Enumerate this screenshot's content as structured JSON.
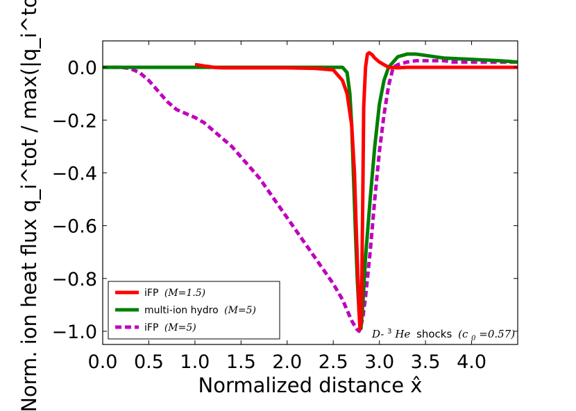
{
  "chart_data": {
    "type": "line",
    "xlabel": "Normalized distance x̂",
    "ylabel": "Norm. ion heat flux q_i^tot / max(|q_i^tot|)",
    "xlim": [
      0.0,
      4.5
    ],
    "ylim": [
      -1.05,
      0.1
    ],
    "x_ticks": [
      0.0,
      0.5,
      1.0,
      1.5,
      2.0,
      2.5,
      3.0,
      3.5,
      4.0
    ],
    "x_tick_labels": [
      "0.0",
      "0.5",
      "1.0",
      "1.5",
      "2.0",
      "2.5",
      "3.0",
      "3.5",
      "4.0"
    ],
    "y_ticks": [
      0.0,
      -0.2,
      -0.4,
      -0.6,
      -0.8,
      -1.0
    ],
    "y_tick_labels": [
      "0.0",
      "−0.2",
      "−0.4",
      "−0.6",
      "−0.8",
      "−1.0"
    ],
    "legend_position": "lower-left",
    "annotation": {
      "prefix": "D-",
      "superscript": "3",
      "species": "He",
      "word": "shocks",
      "param": "(c",
      "param_sub": "0",
      "param_value": "=0.57)"
    },
    "series": [
      {
        "name": "iFP",
        "label_text": "iFP",
        "label_math": "(M=1.5)",
        "color": "#ff0000",
        "style": "solid",
        "x": [
          1.0,
          1.05,
          1.1,
          1.15,
          1.2,
          1.3,
          1.5,
          2.0,
          2.3,
          2.5,
          2.6,
          2.65,
          2.7,
          2.73,
          2.75,
          2.77,
          2.78,
          2.79,
          2.8,
          2.81,
          2.82,
          2.83,
          2.85,
          2.87,
          2.89,
          2.92,
          2.95,
          3.0,
          3.05,
          3.1,
          3.2,
          3.3,
          3.5,
          4.0,
          4.5
        ],
        "y": [
          0.01,
          0.008,
          0.005,
          0.003,
          0.0,
          -0.002,
          -0.002,
          -0.002,
          -0.004,
          -0.01,
          -0.05,
          -0.1,
          -0.22,
          -0.4,
          -0.62,
          -0.82,
          -0.93,
          -0.99,
          -0.97,
          -0.8,
          -0.5,
          -0.15,
          0.0,
          0.05,
          0.055,
          0.048,
          0.035,
          0.02,
          0.01,
          0.0,
          -0.002,
          0.0,
          0.0,
          0.0,
          0.0
        ]
      },
      {
        "name": "multi-ion hydro",
        "label_text": "multi-ion hydro",
        "label_math": "(M=5)",
        "color": "#007f00",
        "style": "solid",
        "x": [
          0.0,
          1.0,
          2.0,
          2.5,
          2.6,
          2.65,
          2.68,
          2.7,
          2.72,
          2.74,
          2.76,
          2.78,
          2.8,
          2.82,
          2.85,
          2.9,
          2.95,
          3.0,
          3.05,
          3.1,
          3.2,
          3.3,
          3.4,
          3.5,
          3.7,
          4.0,
          4.3,
          4.5
        ],
        "y": [
          0.0,
          0.0,
          0.0,
          0.0,
          0.0,
          -0.02,
          -0.1,
          -0.22,
          -0.42,
          -0.62,
          -0.8,
          -0.93,
          -0.99,
          -0.9,
          -0.72,
          -0.5,
          -0.3,
          -0.14,
          -0.05,
          0.0,
          0.04,
          0.05,
          0.05,
          0.045,
          0.035,
          0.03,
          0.025,
          0.02
        ]
      },
      {
        "name": "iFP",
        "label_text": "iFP",
        "label_math": "(M=5)",
        "color": "#bf00bf",
        "style": "dashed",
        "x": [
          0.0,
          0.1,
          0.2,
          0.3,
          0.4,
          0.5,
          0.6,
          0.7,
          0.8,
          0.9,
          1.0,
          1.1,
          1.2,
          1.3,
          1.4,
          1.5,
          1.6,
          1.7,
          1.8,
          1.9,
          2.0,
          2.1,
          2.2,
          2.3,
          2.4,
          2.5,
          2.55,
          2.6,
          2.65,
          2.7,
          2.75,
          2.78,
          2.8,
          2.82,
          2.85,
          2.9,
          2.95,
          3.0,
          3.05,
          3.1,
          3.15,
          3.2,
          3.3,
          3.4,
          3.5,
          3.6,
          3.7,
          3.8,
          4.0,
          4.2,
          4.4,
          4.5
        ],
        "y": [
          0.0,
          0.0,
          0.0,
          -0.005,
          -0.02,
          -0.05,
          -0.09,
          -0.13,
          -0.16,
          -0.175,
          -0.19,
          -0.21,
          -0.24,
          -0.27,
          -0.3,
          -0.34,
          -0.38,
          -0.42,
          -0.47,
          -0.52,
          -0.57,
          -0.62,
          -0.67,
          -0.72,
          -0.77,
          -0.82,
          -0.85,
          -0.88,
          -0.92,
          -0.96,
          -0.99,
          -1.0,
          -0.98,
          -0.95,
          -0.87,
          -0.7,
          -0.5,
          -0.32,
          -0.18,
          -0.07,
          0.0,
          0.01,
          0.02,
          0.025,
          0.025,
          0.025,
          0.025,
          0.02,
          0.02,
          0.02,
          0.02,
          0.02
        ]
      }
    ]
  }
}
